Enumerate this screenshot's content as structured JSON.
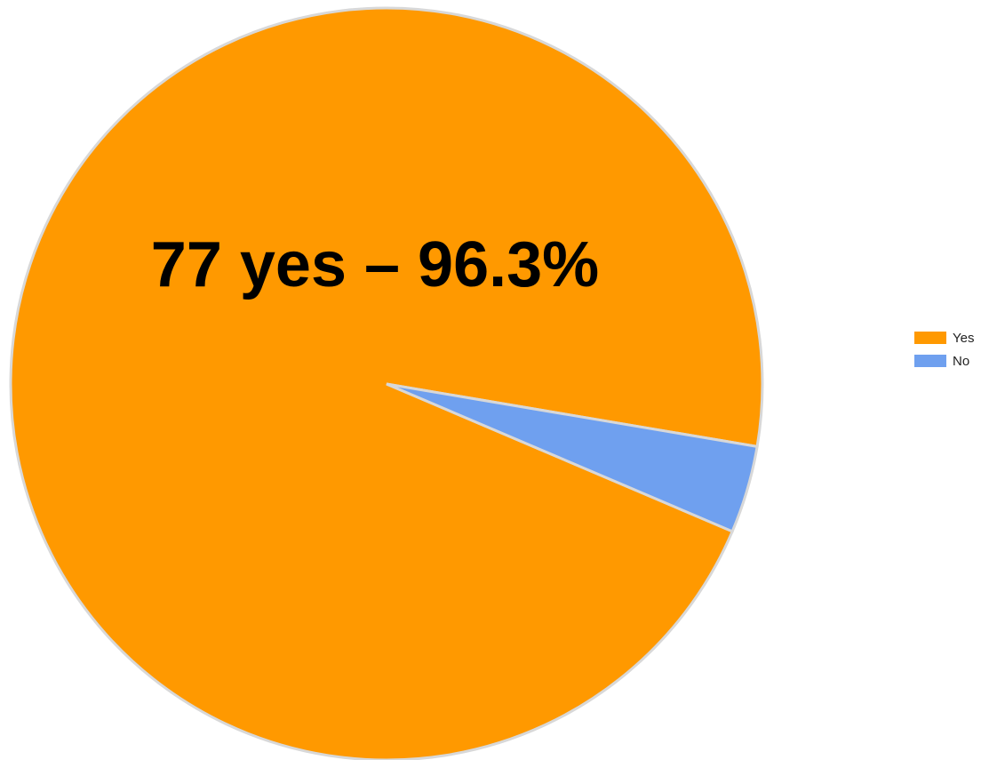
{
  "chart_data": {
    "type": "pie",
    "categories": [
      "Yes",
      "No"
    ],
    "values": [
      77,
      3
    ],
    "colors": {
      "Yes": "#ff9900",
      "No": "#6fa0ef"
    },
    "slice_border_color": "#d8d8d8",
    "annotation": "77 yes – 96.3%",
    "annotation_color": "#000000",
    "legend": {
      "position": "right",
      "items": [
        {
          "label": "Yes",
          "color": "#ff9900"
        },
        {
          "label": "No",
          "color": "#6fa0ef"
        }
      ]
    }
  }
}
